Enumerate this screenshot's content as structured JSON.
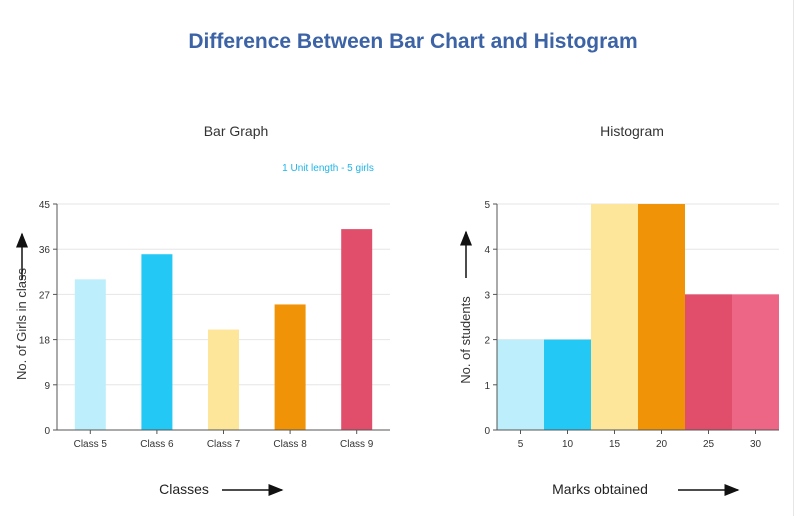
{
  "page_title": "Difference Between Bar Chart and Histogram",
  "colors": {
    "title": "#3b63a6",
    "note": "#1fb4e8",
    "light_cyan": "#bdeefb",
    "cyan": "#24c8f5",
    "yellow": "#fde59a",
    "orange": "#f19307",
    "red": "#e04e6b",
    "pink": "#ee6685",
    "gridline": "#e6e6e6",
    "axis": "#555555"
  },
  "chart_data": [
    {
      "type": "bar",
      "title": "Bar Graph",
      "annotation": "1 Unit length - 5 girls",
      "categories": [
        "Class 5",
        "Class 6",
        "Class 7",
        "Class 8",
        "Class 9"
      ],
      "values": [
        30,
        35,
        20,
        25,
        40
      ],
      "bar_colors": [
        "#bdeefb",
        "#24c8f5",
        "#fde59a",
        "#f19307",
        "#e04e6b"
      ],
      "xlabel": "Classes",
      "ylabel": "No. of Girls in class",
      "ylim": [
        0,
        45
      ],
      "yticks": [
        "0",
        "9",
        "18",
        "27",
        "36",
        "45"
      ],
      "grid": true,
      "legend": "none"
    },
    {
      "type": "bar",
      "title": "Histogram",
      "bins": [
        {
          "label": "5",
          "value": 2,
          "color": "#bdeefb"
        },
        {
          "label": "10",
          "value": 2,
          "color": "#24c8f5"
        },
        {
          "label": "15",
          "value": 5,
          "color": "#fde59a"
        },
        {
          "label": "20",
          "value": 5,
          "color": "#f19307"
        },
        {
          "label": "25",
          "value": 3,
          "color": "#e04e6b"
        },
        {
          "label": "30",
          "value": 3,
          "color": "#ee6685"
        }
      ],
      "xlabel": "Marks obtained",
      "ylabel": "No. of students",
      "ylim": [
        0,
        5
      ],
      "yticks": [
        "0",
        "1",
        "2",
        "3",
        "4",
        "5"
      ],
      "grid": true,
      "legend": "none"
    }
  ]
}
